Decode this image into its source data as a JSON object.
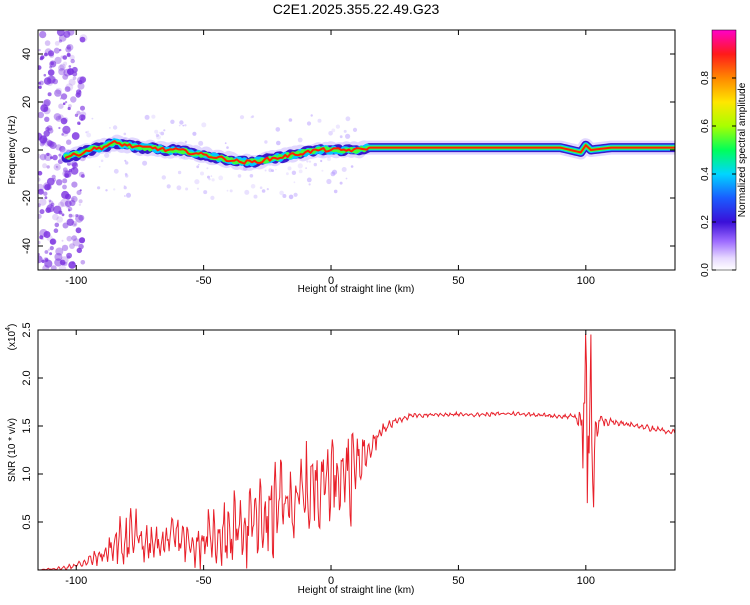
{
  "title": "C2E1.2025.355.22.49.G23",
  "colors": {
    "snr_line": "#e8202a",
    "axis": "#000000",
    "ridge_core": "#ff2000",
    "ridge_mid": "#3cff3c",
    "ridge_outer": "#2f10c8",
    "scatter": "#7a30e0"
  },
  "chart_data": [
    {
      "type": "heatmap",
      "name": "spectrogram",
      "xlabel": "Height of straight line (km)",
      "ylabel": "Frequency (Hz)",
      "xlim": [
        -115,
        135
      ],
      "ylim": [
        -50,
        50
      ],
      "x_ticks": [
        -100,
        -50,
        0,
        50,
        100
      ],
      "x_tick_labels": [
        "-100",
        "-50",
        "0",
        "50",
        "100"
      ],
      "y_ticks": [
        -40,
        -20,
        0,
        20,
        40
      ],
      "y_tick_labels": [
        "-40",
        "-20",
        "0",
        "20",
        "40"
      ],
      "colorbar": {
        "label": "Normalized spectral amplitude",
        "range": [
          0.0,
          1.0
        ],
        "ticks": [
          0.0,
          0.2,
          0.4,
          0.6,
          0.8
        ],
        "tick_labels": [
          "0.0",
          "0.2",
          "0.4",
          "0.6",
          "0.8"
        ],
        "colormap": "rainbow (white-violet-blue-cyan-green-yellow-red-magenta)"
      },
      "ridge": {
        "x": [
          -105,
          -100,
          -95,
          -90,
          -85,
          -80,
          -75,
          -70,
          -65,
          -60,
          -55,
          -50,
          -45,
          -40,
          -35,
          -30,
          -25,
          -20,
          -15,
          -10,
          -5,
          0,
          5,
          10,
          15,
          30,
          60,
          90,
          98,
          100,
          102,
          110,
          120,
          135
        ],
        "y": [
          -3,
          -2,
          0,
          1,
          3,
          2,
          1,
          1,
          0,
          0,
          -1,
          -2,
          -3,
          -4,
          -5,
          -5,
          -4,
          -3,
          -2,
          -1,
          0,
          0,
          0,
          0,
          1,
          1,
          1,
          1,
          -1,
          2,
          0,
          1,
          1,
          1
        ]
      }
    },
    {
      "type": "line",
      "name": "snr",
      "xlabel": "Height of straight line (km)",
      "ylabel": "SNR (10 * v/v)",
      "y_multiplier_label": "(x10",
      "y_multiplier_exponent": "4",
      "y_multiplier_close": ")",
      "xlim": [
        -115,
        135
      ],
      "ylim": [
        0.0,
        2.5
      ],
      "x_ticks": [
        -100,
        -50,
        0,
        50,
        100
      ],
      "x_tick_labels": [
        "-100",
        "-50",
        "0",
        "50",
        "100"
      ],
      "y_ticks": [
        0.5,
        1.0,
        1.5,
        2.0,
        2.5
      ],
      "y_tick_labels": [
        "0.5",
        "1.0",
        "1.5",
        "2.0",
        "2.5"
      ],
      "envelope": {
        "x": [
          -115,
          -105,
          -100,
          -95,
          -90,
          -85,
          -80,
          -78,
          -75,
          -70,
          -65,
          -60,
          -55,
          -50,
          -45,
          -40,
          -35,
          -30,
          -25,
          -20,
          -15,
          -10,
          -5,
          0,
          5,
          8,
          10,
          15,
          20,
          25,
          30,
          40,
          50,
          60,
          70,
          80,
          90,
          95,
          98,
          100,
          102,
          103,
          105,
          110,
          120,
          130,
          135
        ],
        "center": [
          0.0,
          0.02,
          0.05,
          0.1,
          0.15,
          0.25,
          0.35,
          0.4,
          0.3,
          0.25,
          0.3,
          0.35,
          0.25,
          0.3,
          0.35,
          0.4,
          0.45,
          0.5,
          0.55,
          0.7,
          0.7,
          0.8,
          0.9,
          1.0,
          1.05,
          1.0,
          1.1,
          1.3,
          1.45,
          1.55,
          1.6,
          1.62,
          1.62,
          1.62,
          1.63,
          1.62,
          1.6,
          1.6,
          1.55,
          1.65,
          1.4,
          1.2,
          1.55,
          1.55,
          1.5,
          1.45,
          1.43
        ],
        "amplitude": [
          0.0,
          0.02,
          0.03,
          0.06,
          0.1,
          0.2,
          0.35,
          0.35,
          0.2,
          0.18,
          0.2,
          0.2,
          0.22,
          0.25,
          0.3,
          0.35,
          0.4,
          0.45,
          0.5,
          0.45,
          0.4,
          0.45,
          0.45,
          0.4,
          0.4,
          0.55,
          0.3,
          0.15,
          0.08,
          0.04,
          0.03,
          0.02,
          0.02,
          0.02,
          0.02,
          0.02,
          0.02,
          0.03,
          0.12,
          0.9,
          1.0,
          0.6,
          0.08,
          0.04,
          0.03,
          0.03,
          0.03
        ]
      }
    }
  ]
}
